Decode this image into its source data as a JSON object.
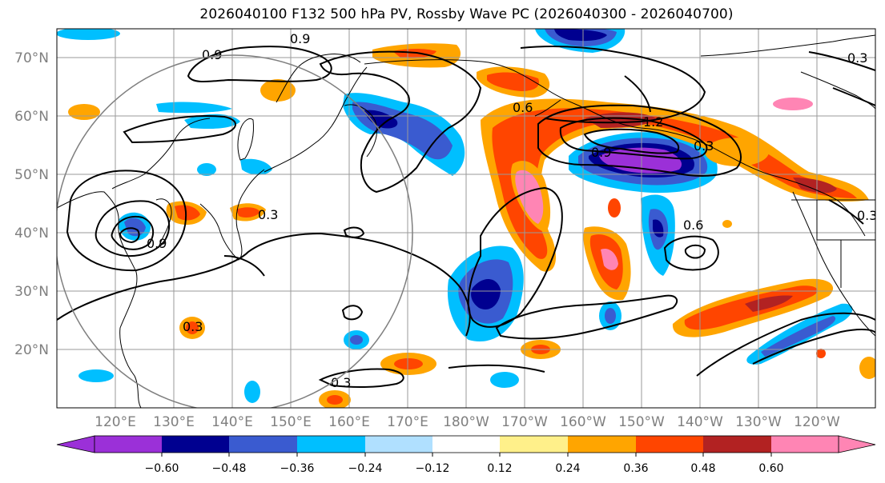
{
  "title": "2026040100 F132 500 hPa PV, Rossby Wave PC (2026040300 - 2026040700)",
  "lat_labels": [
    "70°N",
    "60°N",
    "50°N",
    "40°N",
    "30°N",
    "20°N"
  ],
  "lon_labels": [
    "120°E",
    "130°E",
    "140°E",
    "150°E",
    "160°E",
    "170°E",
    "180°W",
    "170°W",
    "160°W",
    "150°W",
    "140°W",
    "130°W",
    "120°W"
  ],
  "contour_labels": [
    "0.9",
    "0.9",
    "0.3",
    "0.3",
    "0.6",
    "0.9",
    "1.2",
    "0.3",
    "0.6",
    "0.3",
    "0.3",
    "0.9",
    "0.3"
  ],
  "colorbar": {
    "colors": [
      "#9b30d8",
      "#000090",
      "#3a5bd0",
      "#00bfff",
      "#b0e0ff",
      "#ffffff",
      "#fff08a",
      "#ffa500",
      "#ff4500",
      "#b22222",
      "#ff85b4"
    ],
    "ticks": [
      "−0.60",
      "−0.48",
      "−0.36",
      "−0.24",
      "−0.12",
      "0.12",
      "0.24",
      "0.36",
      "0.48",
      "0.60"
    ]
  }
}
